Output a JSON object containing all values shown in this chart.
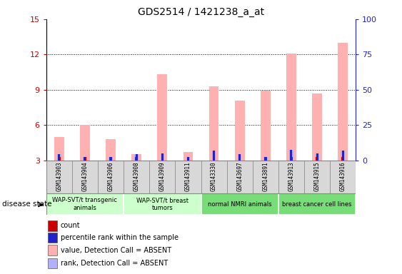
{
  "title": "GDS2514 / 1421238_a_at",
  "samples": [
    "GSM143903",
    "GSM143904",
    "GSM143906",
    "GSM143908",
    "GSM143909",
    "GSM143911",
    "GSM143330",
    "GSM143697",
    "GSM143891",
    "GSM143913",
    "GSM143915",
    "GSM143916"
  ],
  "count_values": [
    3.3,
    3.3,
    3.3,
    3.3,
    3.3,
    3.3,
    3.3,
    3.3,
    3.3,
    3.3,
    3.3,
    3.3
  ],
  "rank_values": [
    3.5,
    3.3,
    3.3,
    3.5,
    3.6,
    3.3,
    3.8,
    3.5,
    3.3,
    3.9,
    3.6,
    3.8
  ],
  "absent_value": [
    5.0,
    6.0,
    4.8,
    3.5,
    10.3,
    3.7,
    9.3,
    8.1,
    8.9,
    12.1,
    8.7,
    13.0
  ],
  "absent_rank": [
    3.5,
    3.3,
    3.3,
    3.5,
    3.6,
    3.3,
    3.8,
    3.5,
    3.3,
    3.9,
    3.6,
    3.8
  ],
  "ylim_left": [
    3,
    15
  ],
  "yticks_left": [
    3,
    6,
    9,
    12,
    15
  ],
  "ylim_right": [
    0,
    100
  ],
  "yticks_right": [
    0,
    25,
    50,
    75,
    100
  ],
  "groups": [
    {
      "label": "WAP-SVT/t transgenic\nanimals",
      "start": 0,
      "end": 3,
      "color": "#ccffcc"
    },
    {
      "label": "WAP-SVT/t breast\ntumors",
      "start": 3,
      "end": 6,
      "color": "#ccffcc"
    },
    {
      "label": "normal NMRI animals",
      "start": 6,
      "end": 9,
      "color": "#77dd77"
    },
    {
      "label": "breast cancer cell lines",
      "start": 9,
      "end": 12,
      "color": "#77dd77"
    }
  ],
  "count_color": "#cc0000",
  "rank_color": "#2222cc",
  "absent_value_color": "#ffb0b0",
  "absent_rank_color": "#b0b0ff",
  "label_color_left": "#cc0000",
  "label_color_right": "#2222cc",
  "disease_state_label": "disease state",
  "legend_items": [
    {
      "label": "count",
      "color": "#cc0000"
    },
    {
      "label": "percentile rank within the sample",
      "color": "#2222cc"
    },
    {
      "label": "value, Detection Call = ABSENT",
      "color": "#ffb0b0"
    },
    {
      "label": "rank, Detection Call = ABSENT",
      "color": "#b0b0ff"
    }
  ]
}
